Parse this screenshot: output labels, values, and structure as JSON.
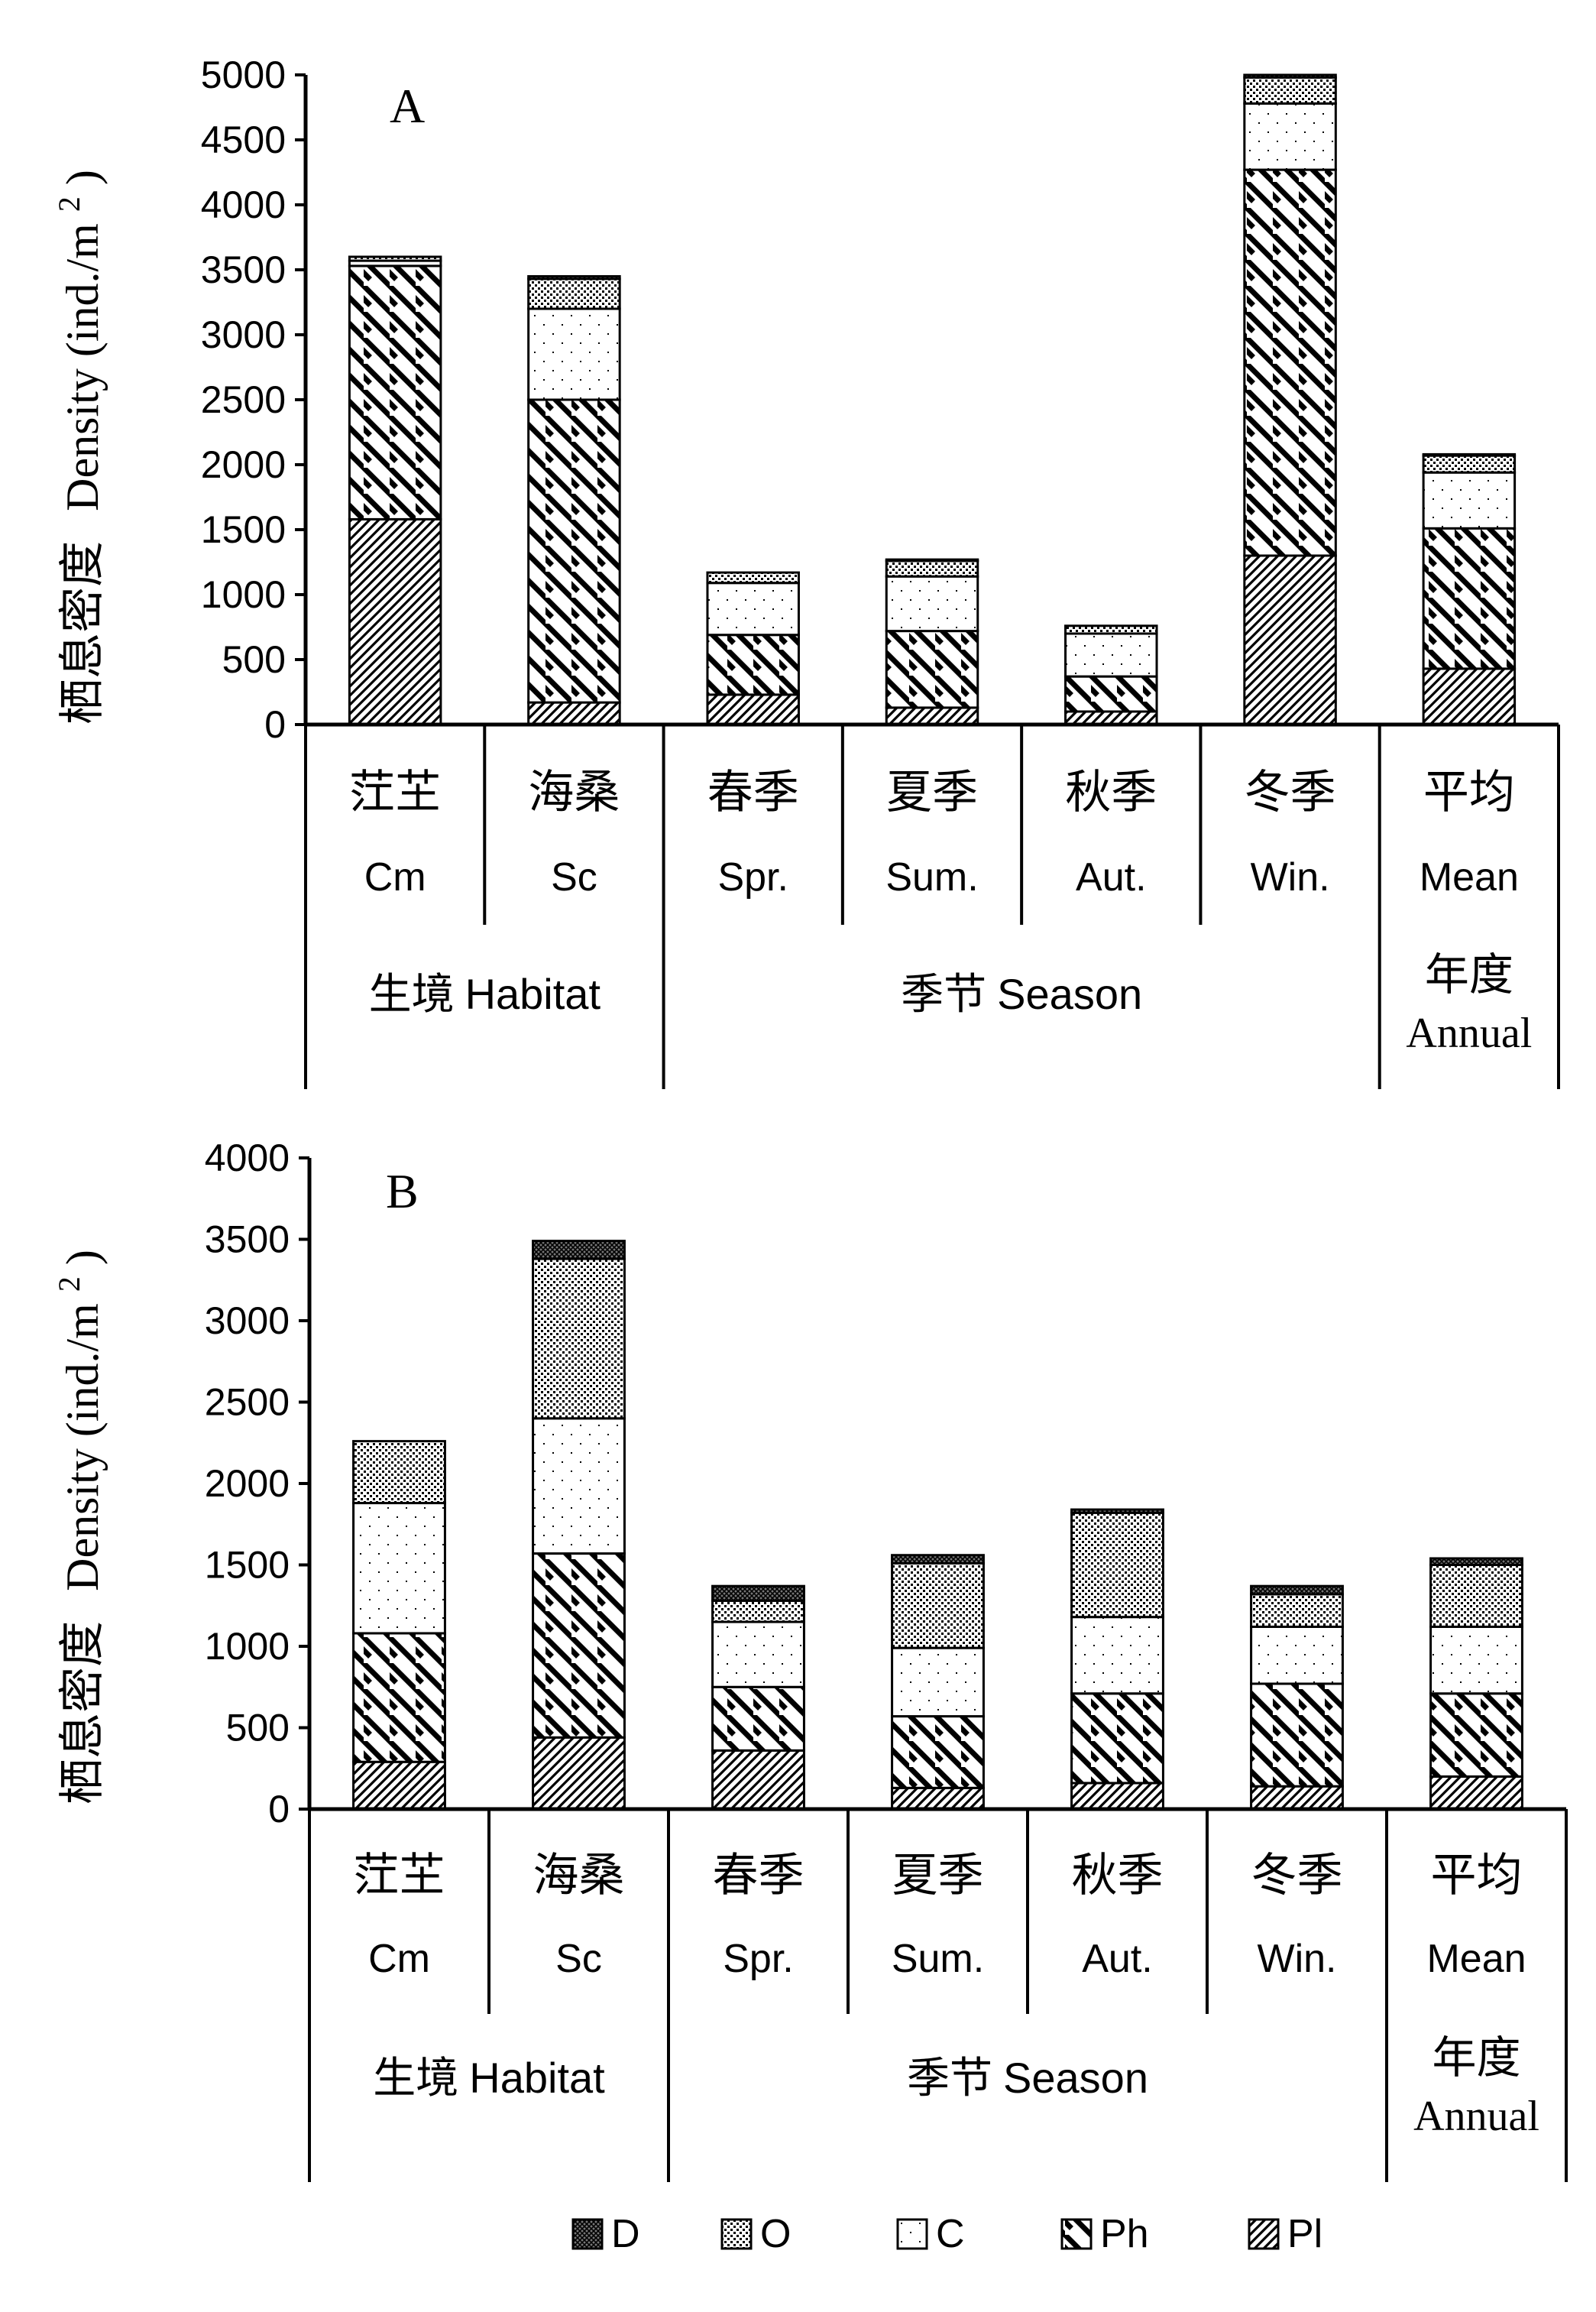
{
  "chart_data": [
    {
      "type": "bar",
      "stacked": true,
      "panel_label": "A",
      "ylabel": "栖息密度 Density (ind./m2)",
      "ylabel_cn": "栖息密度",
      "ylabel_en": "Density (ind./m",
      "ylabel_sup": "2",
      "ylabel_close": ")",
      "ylim": [
        0,
        5000
      ],
      "yticks": [
        "0",
        "500",
        "1000",
        "1500",
        "2000",
        "2500",
        "3000",
        "3500",
        "4000",
        "4500",
        "5000"
      ],
      "categories": [
        {
          "cn": "茳芏",
          "en": "Cm"
        },
        {
          "cn": "海桑",
          "en": "Sc"
        },
        {
          "cn": "春季",
          "en": "Spr."
        },
        {
          "cn": "夏季",
          "en": "Sum."
        },
        {
          "cn": "秋季",
          "en": "Aut."
        },
        {
          "cn": "冬季",
          "en": "Win."
        },
        {
          "cn": "平均",
          "en": "Mean"
        }
      ],
      "groups": [
        {
          "label": "生境 Habitat",
          "span": [
            0,
            1
          ]
        },
        {
          "label": "季节 Season",
          "span": [
            2,
            5
          ]
        },
        {
          "label_line1": "年度",
          "label_line2": "Annual",
          "span": [
            6,
            6
          ]
        }
      ],
      "series": [
        {
          "name": "Pl",
          "values": [
            1580,
            170,
            230,
            130,
            100,
            1300,
            430
          ]
        },
        {
          "name": "Ph",
          "values": [
            1950,
            2330,
            460,
            590,
            270,
            2970,
            1080
          ]
        },
        {
          "name": "C",
          "values": [
            40,
            700,
            400,
            420,
            330,
            510,
            430
          ]
        },
        {
          "name": "O",
          "values": [
            30,
            230,
            80,
            120,
            60,
            200,
            130
          ]
        },
        {
          "name": "D",
          "values": [
            0,
            20,
            0,
            10,
            0,
            20,
            10
          ]
        }
      ]
    },
    {
      "type": "bar",
      "stacked": true,
      "panel_label": "B",
      "ylabel": "栖息密度 Density (ind./m2)",
      "ylabel_cn": "栖息密度",
      "ylabel_en": "Density (ind./m",
      "ylabel_sup": "2",
      "ylabel_close": ")",
      "ylim": [
        0,
        4000
      ],
      "yticks": [
        "0",
        "500",
        "1000",
        "1500",
        "2000",
        "2500",
        "3000",
        "3500",
        "4000"
      ],
      "categories": [
        {
          "cn": "茳芏",
          "en": "Cm"
        },
        {
          "cn": "海桑",
          "en": "Sc"
        },
        {
          "cn": "春季",
          "en": "Spr."
        },
        {
          "cn": "夏季",
          "en": "Sum."
        },
        {
          "cn": "秋季",
          "en": "Aut."
        },
        {
          "cn": "冬季",
          "en": "Win."
        },
        {
          "cn": "平均",
          "en": "Mean"
        }
      ],
      "groups": [
        {
          "label": "生境 Habitat",
          "span": [
            0,
            1
          ]
        },
        {
          "label": "季节 Season",
          "span": [
            2,
            5
          ]
        },
        {
          "label_line1": "年度",
          "label_line2": "Annual",
          "span": [
            6,
            6
          ]
        }
      ],
      "series": [
        {
          "name": "Pl",
          "values": [
            290,
            440,
            360,
            130,
            160,
            140,
            200
          ]
        },
        {
          "name": "Ph",
          "values": [
            790,
            1130,
            390,
            440,
            550,
            630,
            510
          ]
        },
        {
          "name": "C",
          "values": [
            800,
            830,
            400,
            420,
            470,
            350,
            410
          ]
        },
        {
          "name": "O",
          "values": [
            380,
            980,
            130,
            520,
            640,
            200,
            380
          ]
        },
        {
          "name": "D",
          "values": [
            0,
            110,
            90,
            50,
            20,
            50,
            40
          ]
        }
      ]
    }
  ],
  "legend": {
    "placement": "bottom",
    "items": [
      {
        "name": "D",
        "pattern": "pattern-d"
      },
      {
        "name": "O",
        "pattern": "pattern-o"
      },
      {
        "name": "C",
        "pattern": "pattern-c"
      },
      {
        "name": "Ph",
        "pattern": "pattern-ph"
      },
      {
        "name": "Pl",
        "pattern": "pattern-pl"
      }
    ]
  },
  "series_patterns": {
    "D": "pattern-d",
    "O": "pattern-o",
    "C": "pattern-c",
    "Ph": "pattern-ph",
    "Pl": "pattern-pl"
  }
}
